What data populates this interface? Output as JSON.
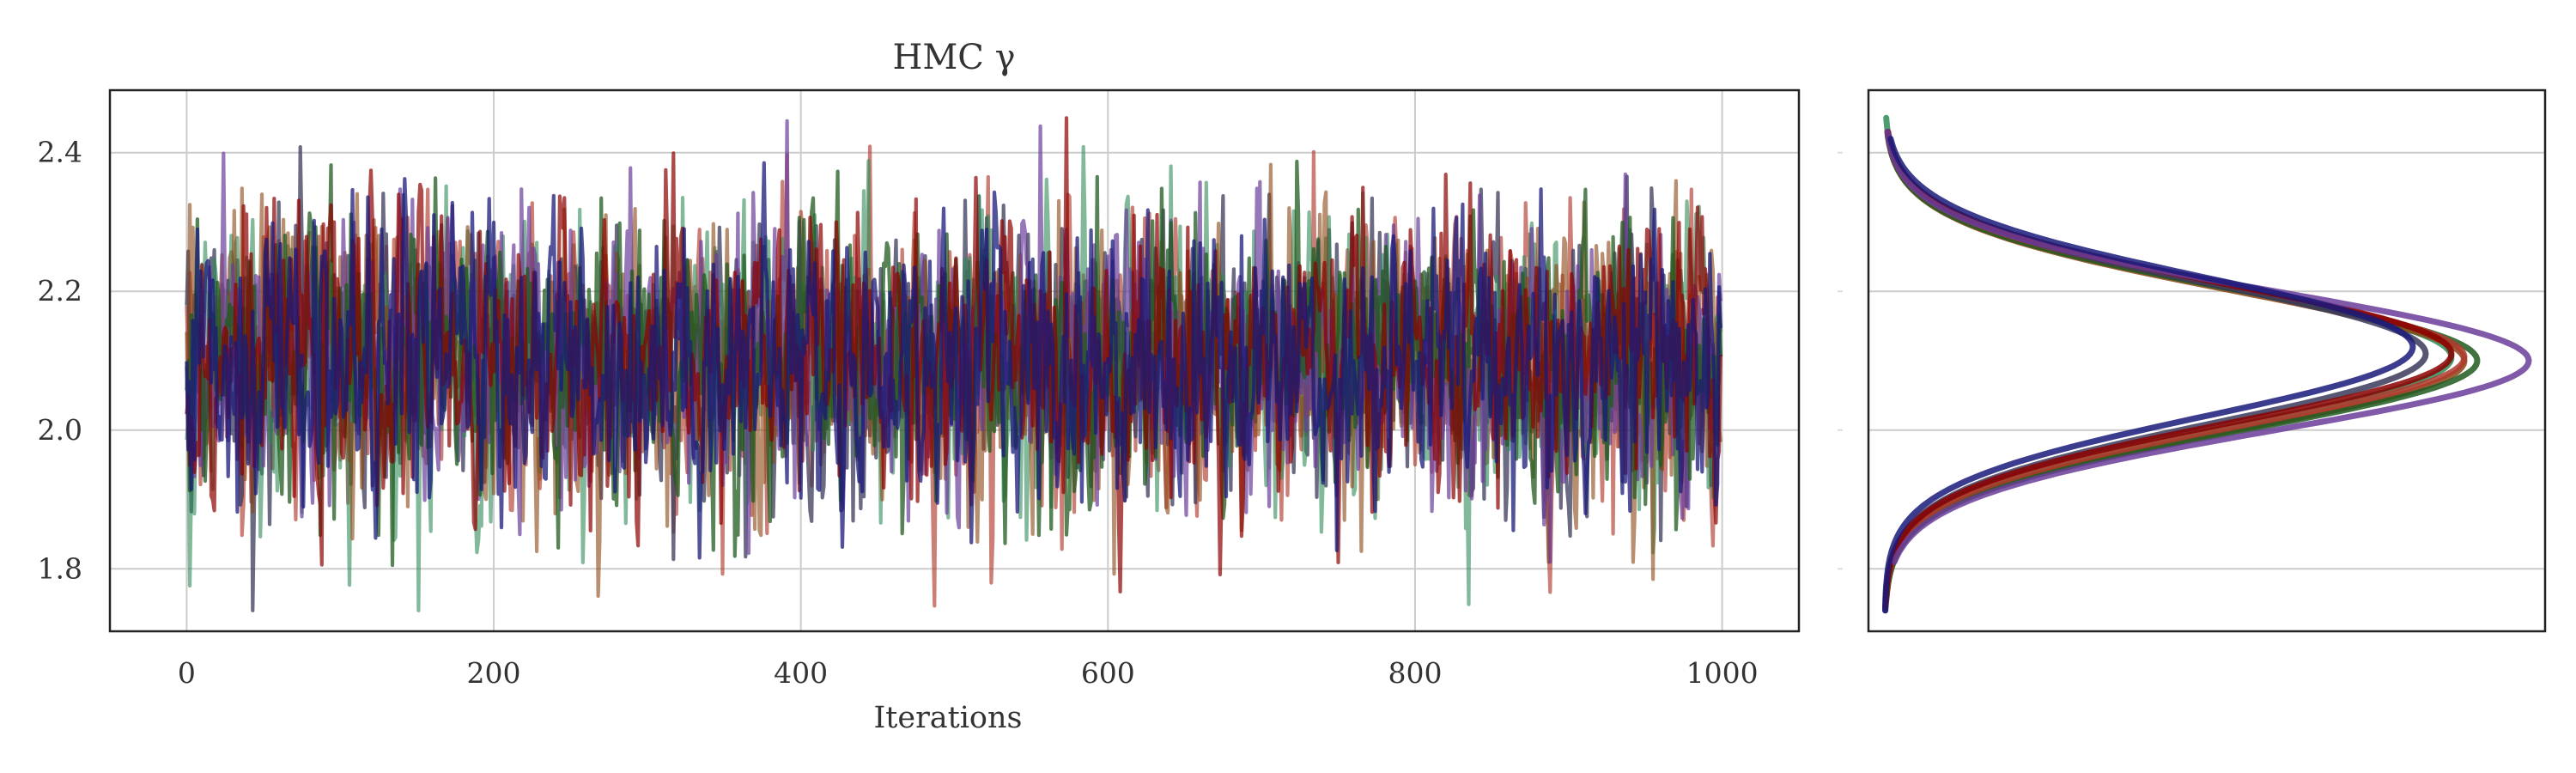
{
  "chart_data": [
    {
      "type": "line",
      "title": "HMC γ",
      "xlabel": "Iterations",
      "ylabel": "",
      "xlim": [
        -50,
        1050
      ],
      "ylim": [
        1.71,
        2.49
      ],
      "xticks": [
        0,
        200,
        400,
        600,
        800,
        1000
      ],
      "yticks": [
        1.8,
        2.0,
        2.2,
        2.4
      ],
      "grid": true,
      "legend": "none",
      "n_samples": 1000,
      "trace_center": 2.1,
      "trace_spread": 0.1,
      "trace_min": 1.74,
      "trace_max": 2.45,
      "series": [
        {
          "color": "#b03a2e",
          "opacity": 0.65
        },
        {
          "color": "#3a3a5a",
          "opacity": 0.75
        },
        {
          "color": "#2e8b57",
          "opacity": 0.6
        },
        {
          "color": "#8b4513",
          "opacity": 0.6
        },
        {
          "color": "#6a3d9a",
          "opacity": 0.7
        },
        {
          "color": "#1f5a1f",
          "opacity": 0.75
        },
        {
          "color": "#8b0000",
          "opacity": 0.7
        },
        {
          "color": "#1a1a7a",
          "opacity": 0.75
        }
      ]
    },
    {
      "type": "density",
      "title": "",
      "xlabel": "",
      "ylabel": "",
      "ylim": [
        1.71,
        2.49
      ],
      "yticks": [
        1.8,
        2.0,
        2.2,
        2.4
      ],
      "grid": true,
      "legend": "none",
      "series": [
        {
          "color": "#2e8b57",
          "mean": 2.105,
          "sd": 0.1,
          "peak": 0.88,
          "ymin": 1.745,
          "ymax": 2.45
        },
        {
          "color": "#8b4513",
          "mean": 2.1,
          "sd": 0.1,
          "peak": 0.9,
          "ymin": 1.76,
          "ymax": 2.43
        },
        {
          "color": "#1f5a1f",
          "mean": 2.1,
          "sd": 0.1,
          "peak": 0.92,
          "ymin": 1.755,
          "ymax": 2.425
        },
        {
          "color": "#b03a2e",
          "mean": 2.105,
          "sd": 0.1,
          "peak": 0.9,
          "ymin": 1.75,
          "ymax": 2.42
        },
        {
          "color": "#3a3a5a",
          "mean": 2.11,
          "sd": 0.1,
          "peak": 0.84,
          "ymin": 1.74,
          "ymax": 2.42
        },
        {
          "color": "#8b0000",
          "mean": 2.11,
          "sd": 0.1,
          "peak": 0.88,
          "ymin": 1.745,
          "ymax": 2.43
        },
        {
          "color": "#6a3d9a",
          "mean": 2.1,
          "sd": 0.1,
          "peak": 1.0,
          "ymin": 1.81,
          "ymax": 2.43
        },
        {
          "color": "#1a1a7a",
          "mean": 2.12,
          "sd": 0.1,
          "peak": 0.82,
          "ymin": 1.74,
          "ymax": 2.42
        }
      ]
    }
  ]
}
